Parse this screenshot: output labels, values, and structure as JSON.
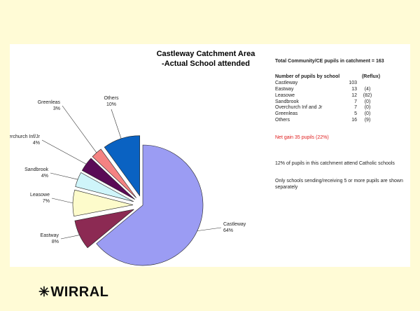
{
  "chart_data": {
    "type": "pie",
    "title_line1": "Castleway Catchment Area",
    "title_line2": "-Actual School attended",
    "slices": [
      {
        "label": "Castleway",
        "percent": 64,
        "color": "#9b9cf3"
      },
      {
        "label": "Eastway",
        "percent": 8,
        "color": "#8c2a53"
      },
      {
        "label": "Leasowe",
        "percent": 7,
        "color": "#fdfbcb"
      },
      {
        "label": "Sandbrook",
        "percent": 4,
        "color": "#cff5fa"
      },
      {
        "label": "Overchurch Inf/Jr",
        "percent": 4,
        "color": "#5a0a56"
      },
      {
        "label": "Greenleas",
        "percent": 3,
        "color": "#f48282"
      },
      {
        "label": "Others",
        "percent": 10,
        "color": "#0a62c2"
      }
    ],
    "labels": [
      {
        "name": "Castleway",
        "pct": "64%"
      },
      {
        "name": "Eastway",
        "pct": "8%"
      },
      {
        "name": "Leasowe",
        "pct": "7%"
      },
      {
        "name": "Sandbrook",
        "pct": "4%"
      },
      {
        "name": "Overchurch Inf/Jr",
        "pct": "4%"
      },
      {
        "name": "Greenleas",
        "pct": "3%"
      },
      {
        "name": "Others",
        "pct": "10%"
      }
    ]
  },
  "info": {
    "total": "Total Community/CE pupils in catchment = 163",
    "col_header": "Number of pupils by school",
    "reflux_header": "(Reflux)",
    "rows": [
      {
        "name": "Castleway",
        "count": "103",
        "reflux": ""
      },
      {
        "name": "Eastway",
        "count": "13",
        "reflux": "(4)"
      },
      {
        "name": "Leasowe",
        "count": "12",
        "reflux": "(82)"
      },
      {
        "name": "Sandbrook",
        "count": "7",
        "reflux": "(0)"
      },
      {
        "name": "Overchurch Inf and Jr",
        "count": "7",
        "reflux": "(0)"
      },
      {
        "name": "Greenleas",
        "count": "5",
        "reflux": "(0)"
      },
      {
        "name": "Others",
        "count": "16",
        "reflux": "(9)"
      }
    ],
    "net_gain": "Net gain 35 pupils (22%)",
    "catholic_note": "12% of pupils in this catchment attend Catholic schools",
    "only_note": "Only schools sending/receiving 5 or more pupils are shown separately"
  },
  "logo": {
    "icon": "gear-icon",
    "glyph": "✳",
    "text": "WIRRAL"
  }
}
